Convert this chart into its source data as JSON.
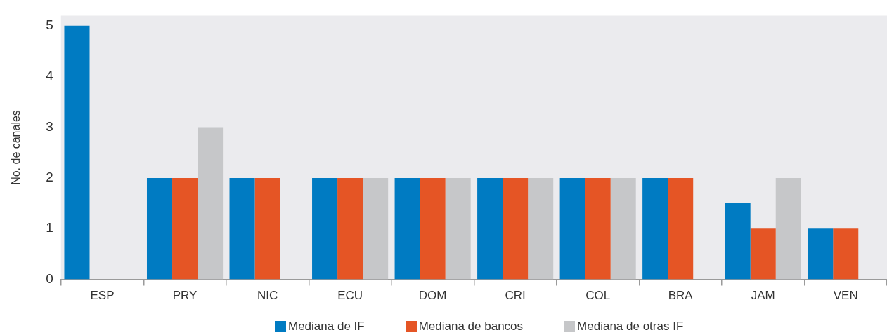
{
  "chart_data": {
    "type": "bar",
    "ylabel": "No. de canales",
    "categories": [
      "ESP",
      "PRY",
      "NIC",
      "ECU",
      "DOM",
      "CRI",
      "COL",
      "BRA",
      "JAM",
      "VEN"
    ],
    "series": [
      {
        "name": "Mediana de IF",
        "color": "#007bc2",
        "values": [
          5,
          2,
          2,
          2,
          2,
          2,
          2,
          2,
          1.5,
          1
        ]
      },
      {
        "name": "Mediana de bancos",
        "color": "#e55525",
        "values": [
          null,
          2,
          2,
          2,
          2,
          2,
          2,
          2,
          1,
          1
        ]
      },
      {
        "name": "Mediana de otras IF",
        "color": "#c6c7c9",
        "values": [
          null,
          3,
          null,
          2,
          2,
          2,
          2,
          null,
          2,
          null
        ]
      }
    ],
    "ylim": [
      0,
      5.2
    ],
    "yticks": [
      0,
      1,
      2,
      3,
      4,
      5
    ],
    "legend": "bottom"
  }
}
